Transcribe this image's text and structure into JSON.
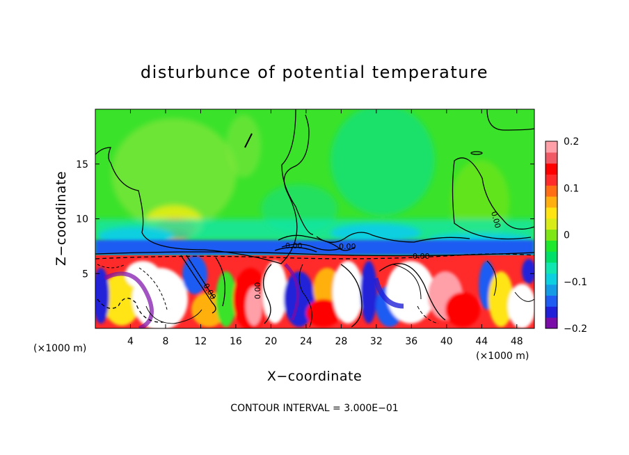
{
  "chart_data": {
    "type": "heatmap",
    "title": "disturbunce of potential temperature",
    "xlabel": "X−coordinate",
    "ylabel": "Z−coordinate",
    "x_unit_label": "(×1000 m)",
    "y_unit_label": "(×1000 m)",
    "xlim": [
      0,
      50
    ],
    "ylim": [
      0,
      20
    ],
    "x_ticks": [
      4,
      8,
      12,
      16,
      20,
      24,
      28,
      32,
      36,
      40,
      44,
      48
    ],
    "x_tick_labels": [
      "4",
      "8",
      "12",
      "16",
      "20",
      "24",
      "28",
      "32",
      "36",
      "40",
      "44",
      "48"
    ],
    "y_ticks": [
      5,
      10,
      15
    ],
    "y_tick_labels": [
      "5",
      "10",
      "15"
    ],
    "colorbar": {
      "range": [
        -0.2,
        0.2
      ],
      "tick_values": [
        0.2,
        0.1,
        0,
        -0.1,
        -0.2
      ],
      "tick_labels": [
        "0.2",
        "0.1",
        "0",
        "−0.1",
        "−0.2"
      ],
      "colors": [
        "#7a0ca8",
        "#2020d8",
        "#1e5cf2",
        "#149be6",
        "#0ccfe0",
        "#10e6b0",
        "#00e068",
        "#1ee82c",
        "#7de614",
        "#d8ec18",
        "#ffe414",
        "#ffb010",
        "#ff6e14",
        "#ff2a2a",
        "#ff0000",
        "#f05a64",
        "#ff9fa8"
      ]
    },
    "contour_labels": [
      "0.00",
      "0.00",
      "0.00",
      "0.00",
      "0.00",
      "0.00"
    ],
    "footer": "CONTOUR INTERVAL = 3.000E−01"
  }
}
